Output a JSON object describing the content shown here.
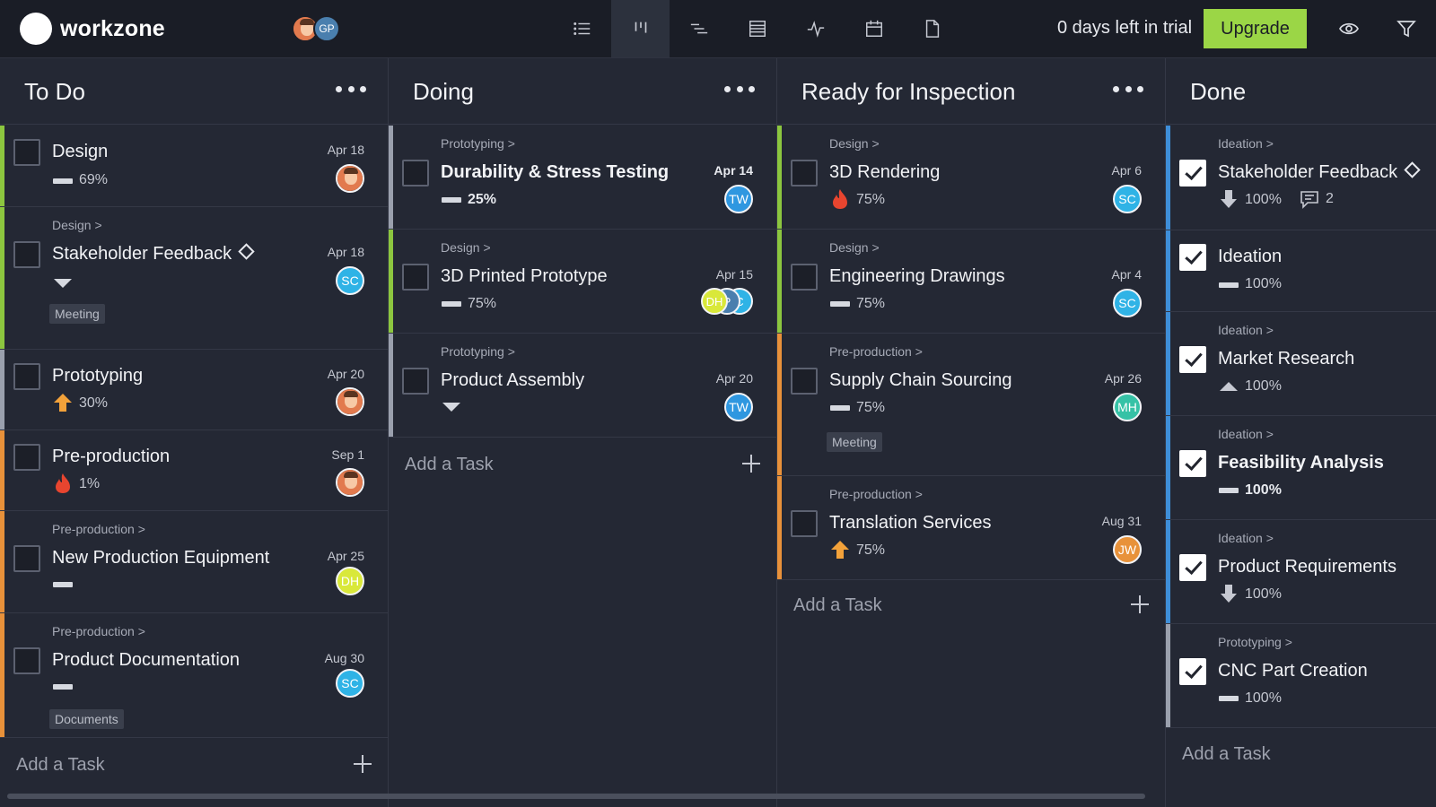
{
  "app": {
    "name": "workzone",
    "team_initials": [
      "",
      "GP"
    ],
    "trial_text": "0 days left in trial",
    "upgrade_label": "Upgrade",
    "accent": "#9bd646"
  },
  "views": [
    "list-view-icon",
    "board-view-icon",
    "gantt-view-icon",
    "table-view-icon",
    "workload-view-icon",
    "calendar-view-icon",
    "files-view-icon"
  ],
  "add_task_label": "Add a Task",
  "columns": [
    {
      "title": "To Do",
      "cards": [
        {
          "crumb": "",
          "title": "Design",
          "date": "Apr 18",
          "priority": "normal",
          "percent": "69%",
          "assignee": ""
        },
        {
          "crumb": "Design >",
          "title": "Stakeholder Feedback",
          "date": "Apr 18",
          "priority": "low",
          "percent": "",
          "assignee": "SC",
          "tag": "Meeting"
        },
        {
          "crumb": "",
          "title": "Prototyping",
          "date": "Apr 20",
          "priority": "high",
          "percent": "30%",
          "assignee": ""
        },
        {
          "crumb": "",
          "title": "Pre-production",
          "date": "Sep 1",
          "priority": "critical",
          "percent": "1%",
          "assignee": ""
        },
        {
          "crumb": "Pre-production >",
          "title": "New Production Equipment",
          "date": "Apr 25",
          "priority": "normal",
          "percent": "",
          "assignee": "DH"
        },
        {
          "crumb": "Pre-production >",
          "title": "Product Documentation",
          "date": "Aug 30",
          "priority": "normal",
          "percent": "",
          "assignee": "SC",
          "tag": "Documents"
        }
      ]
    },
    {
      "title": "Doing",
      "cards": [
        {
          "crumb": "Prototyping >",
          "title": "Durability & Stress Testing",
          "date": "Apr 14",
          "priority": "normal",
          "percent": "25%",
          "assignee": "TW"
        },
        {
          "crumb": "Design >",
          "title": "3D Printed Prototype",
          "date": "Apr 15",
          "priority": "normal",
          "percent": "75%",
          "assignees": [
            "DH",
            "P",
            "C"
          ]
        },
        {
          "crumb": "Prototyping >",
          "title": "Product Assembly",
          "date": "Apr 20",
          "priority": "low",
          "percent": "",
          "assignee": "TW"
        }
      ]
    },
    {
      "title": "Ready for Inspection",
      "cards": [
        {
          "crumb": "Design >",
          "title": "3D Rendering",
          "date": "Apr 6",
          "priority": "critical",
          "percent": "75%",
          "assignee": "SC"
        },
        {
          "crumb": "Design >",
          "title": "Engineering Drawings",
          "date": "Apr 4",
          "priority": "normal",
          "percent": "75%",
          "assignee": "SC"
        },
        {
          "crumb": "Pre-production >",
          "title": "Supply Chain Sourcing",
          "date": "Apr 26",
          "priority": "normal",
          "percent": "75%",
          "assignee": "MH",
          "tag": "Meeting"
        },
        {
          "crumb": "Pre-production >",
          "title": "Translation Services",
          "date": "Aug 31",
          "priority": "high",
          "percent": "75%",
          "assignee": "JW"
        }
      ]
    },
    {
      "title": "Done",
      "cards": [
        {
          "crumb": "Ideation >",
          "title": "Stakeholder Feedback",
          "priority": "down",
          "percent": "100%",
          "comments": "2"
        },
        {
          "crumb": "",
          "title": "Ideation",
          "priority": "normal",
          "percent": "100%"
        },
        {
          "crumb": "Ideation >",
          "title": "Market Research",
          "priority": "up",
          "percent": "100%"
        },
        {
          "crumb": "Ideation >",
          "title": "Feasibility Analysis",
          "priority": "normal",
          "percent": "100%"
        },
        {
          "crumb": "Ideation >",
          "title": "Product Requirements",
          "priority": "down",
          "percent": "100%"
        },
        {
          "crumb": "Prototyping >",
          "title": "CNC Part Creation",
          "priority": "normal",
          "percent": "100%"
        }
      ]
    }
  ],
  "colors": {
    "bar_green": "#8cc63f",
    "bar_orange": "#e8913a",
    "bar_gray": "#9aa0ad",
    "bar_blue": "#3e8ed8",
    "avatar_sc": "#2fb3e6",
    "avatar_tw": "#2f97e0",
    "avatar_dh": "#d9e83a",
    "avatar_mh": "#36c2a6",
    "avatar_jw": "#e8923a",
    "avatar_orange": "#e27a4e",
    "flame": "#e8452f",
    "arrow_orange": "#f3a23a"
  }
}
